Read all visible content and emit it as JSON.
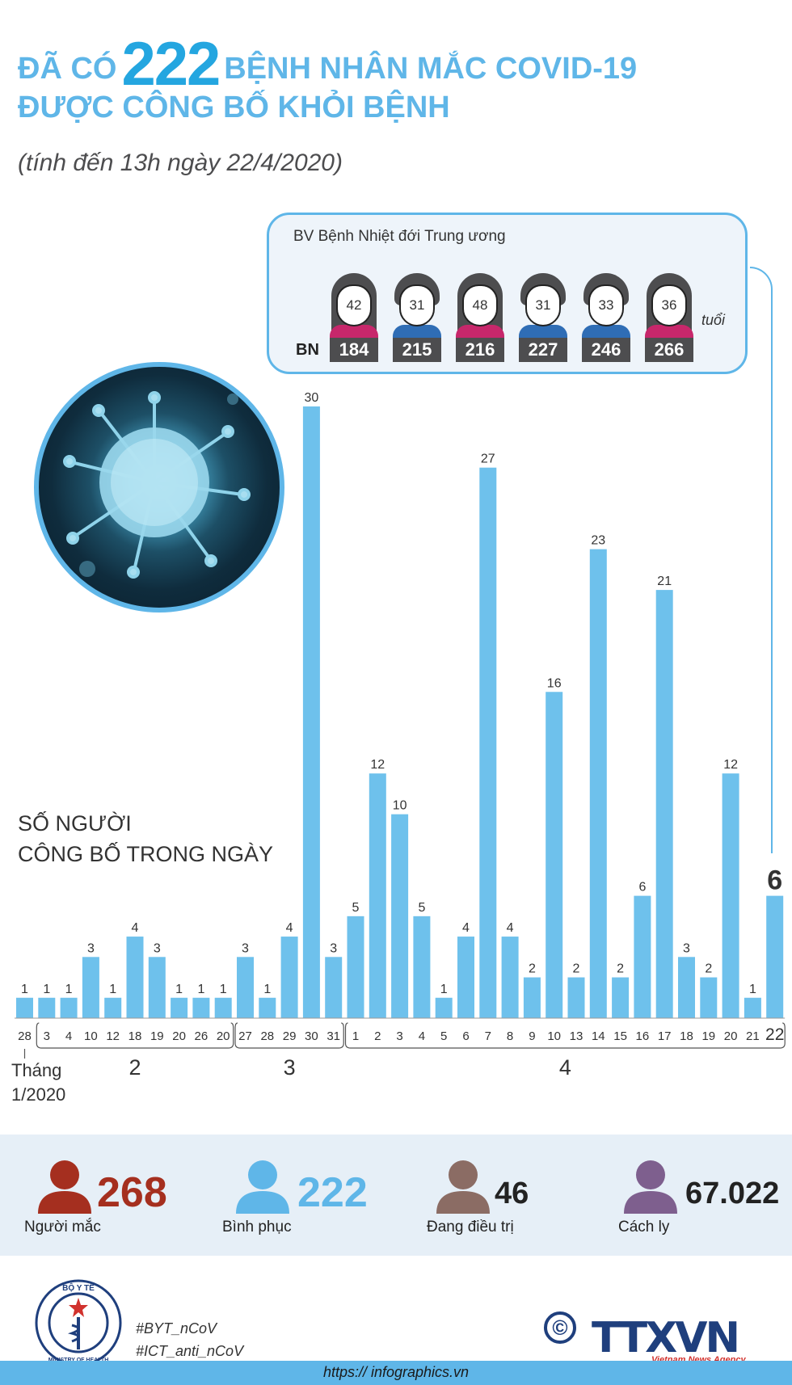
{
  "header": {
    "title_prefix": "ĐÃ CÓ",
    "title_number": "222",
    "title_suffix": "BỆNH NHÂN MẮC COVID-19",
    "title_line2": "ĐƯỢC CÔNG BỐ KHỎI BỆNH",
    "subtitle": "(tính đến 13h ngày 22/4/2020)"
  },
  "hospital_box": {
    "name": "BV Bệnh Nhiệt đới Trung ương",
    "id_label": "BN",
    "age_unit": "tuổi",
    "patients": [
      {
        "age": "42",
        "id": "184",
        "gender": "female"
      },
      {
        "age": "31",
        "id": "215",
        "gender": "male"
      },
      {
        "age": "48",
        "id": "216",
        "gender": "female"
      },
      {
        "age": "31",
        "id": "227",
        "gender": "male"
      },
      {
        "age": "33",
        "id": "246",
        "gender": "male"
      },
      {
        "age": "36",
        "id": "266",
        "gender": "female"
      }
    ]
  },
  "chart_label": {
    "line1": "SỐ NGƯỜI",
    "line2": "CÔNG BỐ TRONG NGÀY"
  },
  "chart_data": {
    "type": "bar",
    "categories": [
      "28",
      "3",
      "4",
      "10",
      "12",
      "18",
      "19",
      "20",
      "26",
      "20",
      "27",
      "28",
      "29",
      "30",
      "31",
      "1",
      "2",
      "3",
      "4",
      "5",
      "6",
      "7",
      "8",
      "9",
      "10",
      "13",
      "14",
      "15",
      "16",
      "17",
      "18",
      "19",
      "20",
      "21",
      "22"
    ],
    "values": [
      1,
      1,
      1,
      3,
      1,
      4,
      3,
      1,
      1,
      1,
      3,
      1,
      4,
      30,
      3,
      5,
      12,
      10,
      5,
      1,
      4,
      27,
      4,
      2,
      16,
      2,
      23,
      2,
      6,
      21,
      3,
      2,
      12,
      1,
      6
    ],
    "highlight_last": true,
    "month_groups": [
      {
        "label": "Tháng 1/2020",
        "start": 0,
        "end": 0
      },
      {
        "label": "2",
        "start": 1,
        "end": 9
      },
      {
        "label": "3",
        "start": 10,
        "end": 14
      },
      {
        "label": "4",
        "start": 15,
        "end": 34
      }
    ],
    "colors": {
      "bar": "#6ec1ec",
      "text": "#333333"
    }
  },
  "stats": [
    {
      "value": "268",
      "label": "Người mắc",
      "color": "#a52f1f"
    },
    {
      "value": "222",
      "label": "Bình phục",
      "color": "#5fb6e8"
    },
    {
      "value": "46",
      "label": "Đang điều trị",
      "color": "#222222",
      "icon_color": "#8b6c64"
    },
    {
      "value": "67.022",
      "label": "Cách ly",
      "color": "#222222",
      "icon_color": "#7e5f8e"
    }
  ],
  "footer": {
    "ministry_logo_top": "BỘ Y TẾ",
    "ministry_logo_bottom": "MINISTRY OF HEALTH",
    "hashtag1": "#BYT_nCoV",
    "hashtag2": "#ICT_anti_nCoV",
    "copyright": "©",
    "agency": "TTXVN",
    "agency_sub": "Vietnam News Agency",
    "url": "https:// infographics.vn"
  }
}
